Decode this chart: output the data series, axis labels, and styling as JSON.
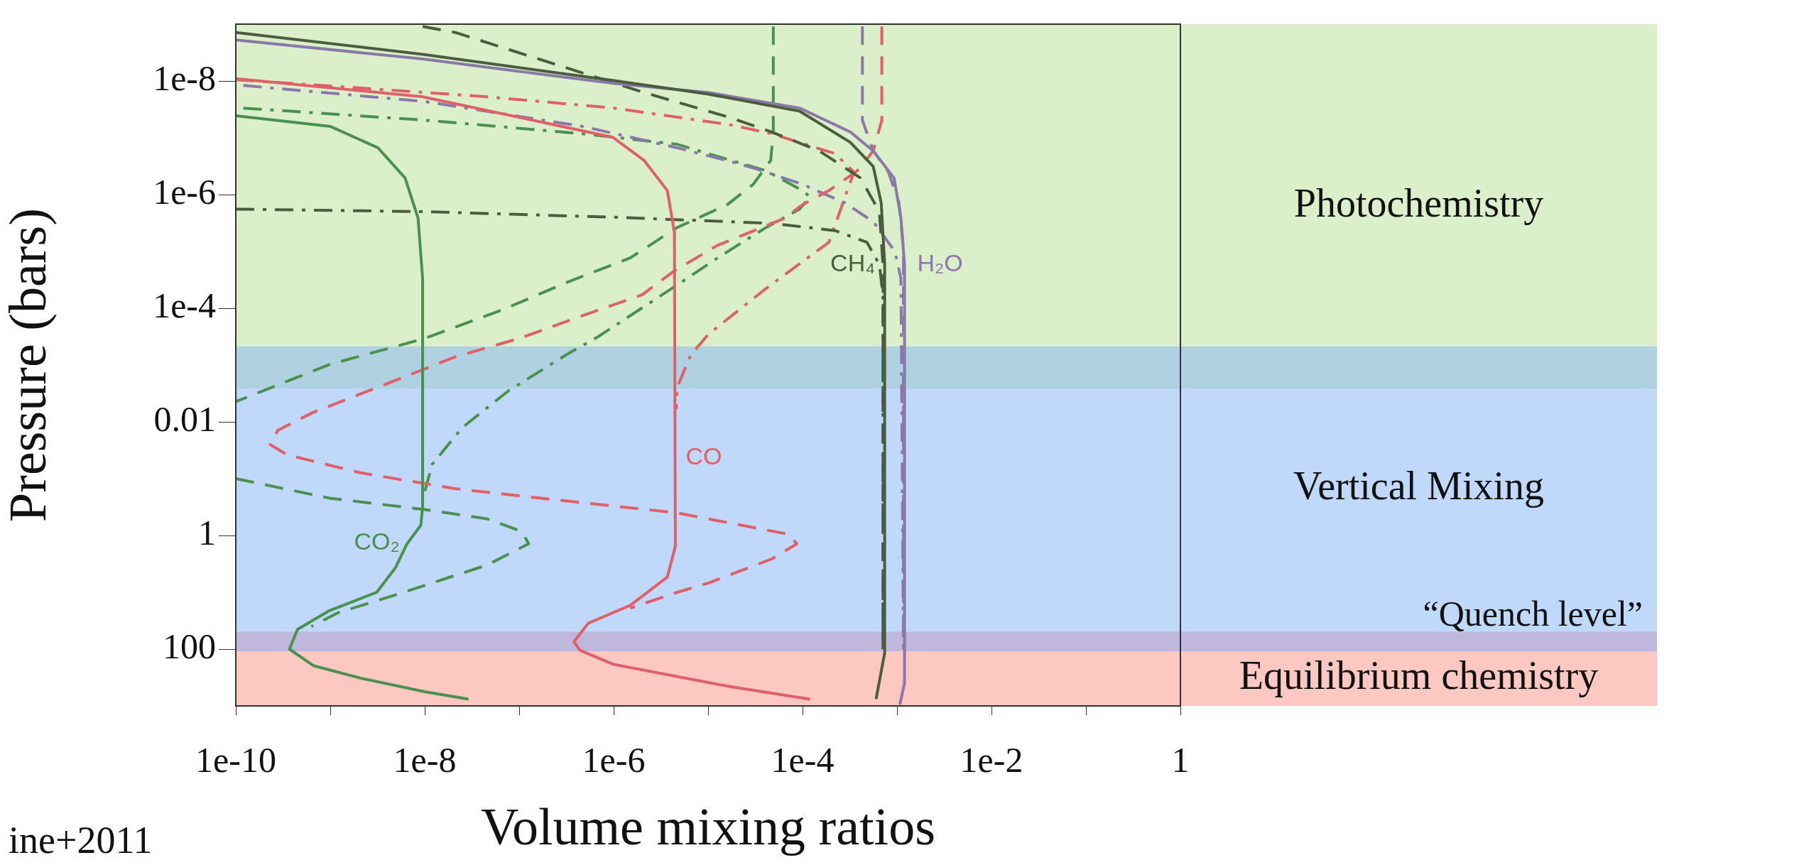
{
  "chart_data": {
    "type": "line",
    "xlabel": "Volume mixing ratios",
    "ylabel": "Pressure (bars)",
    "log": "xy",
    "xlim": [
      1e-10,
      1
    ],
    "xticks": [
      {
        "value": 1e-10,
        "label": "1e-10"
      },
      {
        "value": 1e-09,
        "label": null
      },
      {
        "value": 1e-08,
        "label": "1e-8"
      },
      {
        "value": 1e-07,
        "label": null
      },
      {
        "value": 1e-06,
        "label": "1e-6"
      },
      {
        "value": 1e-05,
        "label": null
      },
      {
        "value": 0.0001,
        "label": "1e-4"
      },
      {
        "value": 0.001,
        "label": null
      },
      {
        "value": 0.01,
        "label": "1e-2"
      },
      {
        "value": 0.1,
        "label": null
      },
      1
    ],
    "ylim": [
      1000,
      1e-09
    ],
    "yticks": [
      {
        "value": 1e-08,
        "label": "1e-8"
      },
      {
        "value": 1e-06,
        "label": "1e-6"
      },
      {
        "value": 0.0001,
        "label": "1e-4"
      },
      0.01,
      1,
      100
    ],
    "bands": [
      {
        "axis": "y",
        "from": 1e-09,
        "to": 0.0026,
        "label": "Photochemistry",
        "color": "#bfe1a0"
      },
      {
        "axis": "y",
        "from": 0.00047,
        "to": 49,
        "label": "Vertical Mixing",
        "color": "#8cb8f5"
      },
      {
        "axis": "y",
        "from": 49,
        "to": 110,
        "label": "“Quench level”",
        "color": "#8c7dbf"
      },
      {
        "axis": "y",
        "from": 110,
        "to": 1000,
        "label": "Equilibrium chemistry",
        "color": "#fd9b90"
      }
    ],
    "annotations": [
      "ine+2011"
    ],
    "series": [
      {
        "name": "CH₄",
        "color": "#4b5d3e",
        "line_style": "solid",
        "x": [
          1e-10,
          9.5e-09,
          9.8e-07,
          1e-05,
          9.3e-05,
          0.00032,
          0.00056,
          0.00068,
          0.00074,
          0.00074,
          0.0006
        ],
        "values": [
          1.4e-09,
          3.4e-09,
          9.8e-09,
          1.7e-08,
          3.4e-08,
          1.2e-07,
          3.2e-07,
          1.4e-06,
          1.7e-05,
          117,
          760
        ]
      },
      {
        "name": "H₂O",
        "color": "#8a78a8",
        "line_style": "solid",
        "x": [
          1e-10,
          9.5e-09,
          9.8e-07,
          1e-05,
          9.3e-05,
          0.00032,
          0.00056,
          0.00093,
          0.0011,
          0.0012,
          0.0012,
          0.00107
        ],
        "values": [
          1.9e-09,
          4.1e-09,
          1.1e-08,
          1.6e-08,
          3e-08,
          7.9e-08,
          1.7e-07,
          5.1e-07,
          2.6e-06,
          1.7e-05,
          400,
          950
        ]
      },
      {
        "name": "CO",
        "color": "#e06068",
        "line_style": "solid",
        "x": [
          1e-10,
          9.5e-09,
          9.8e-07,
          2.1e-06,
          3.7e-06,
          4.4e-06,
          4.5e-06,
          3.7e-06,
          1.5e-06,
          5.4e-07,
          3.8e-07,
          4.4e-07,
          1e-06,
          1.7e-05,
          0.00012
        ],
        "values": [
          9.1e-09,
          1.9e-08,
          9.8e-08,
          2.5e-07,
          8.5e-07,
          4.7e-06,
          1.55,
          5.4,
          17,
          35,
          74,
          105,
          186,
          457,
          760
        ]
      },
      {
        "name": "CO₂",
        "color": "#4a9050",
        "line_style": "solid",
        "x": [
          1e-10,
          1e-09,
          3.2e-09,
          6.2e-09,
          8.5e-09,
          9.5e-09,
          9.5e-09,
          9.1e-09,
          6.5e-09,
          4.9e-09,
          3.1e-09,
          9.8e-10,
          4.5e-10,
          3.7e-10,
          6.6e-10,
          2.1e-09,
          1e-08,
          2.9e-08
        ],
        "values": [
          4.1e-08,
          6.3e-08,
          1.5e-07,
          5.1e-07,
          2.6e-06,
          3e-05,
          0.31,
          0.66,
          1.4,
          3.7,
          10,
          21,
          45,
          100,
          195,
          324,
          562,
          760
        ]
      },
      {
        "color": "#4b5d3e",
        "line_style": "dashed",
        "x": [
          9.5e-09,
          2.1e-08,
          3.2e-07,
          2.1e-06,
          1.7e-05,
          4.7e-05,
          0.00015,
          0.00041,
          0.00065,
          0.00071,
          0.00071
        ],
        "values": [
          1.1e-09,
          1.4e-09,
          5.9e-09,
          1.6e-08,
          4.4e-08,
          7.9e-08,
          1.7e-07,
          5.1e-07,
          2e-06,
          1.7e-05,
          100
        ]
      },
      {
        "color": "#8a78a8",
        "line_style": "dashed",
        "x": [
          0.00043,
          0.00043,
          0.00056,
          0.00081,
          0.00105,
          0.00117,
          0.00117
        ],
        "values": [
          1.1e-09,
          4.9e-08,
          1.7e-07,
          4e-07,
          1.4e-06,
          8.9e-06,
          100
        ]
      },
      {
        "color": "#e06068",
        "line_style": "dashed",
        "x": [
          0.00069,
          0.00069,
          0.00056,
          0.00038,
          0.00019,
          0.0001,
          6.5e-05,
          1.26e-05,
          4.4e-06,
          2e-06,
          4.7e-07,
          1e-07,
          2.1e-08,
          3.1e-09,
          6.6e-10,
          2.8e-10,
          2.3e-10,
          3.5e-10,
          2.1e-09,
          2.1e-08,
          2.1e-07,
          4.7e-06,
          1e-05,
          7.1e-05,
          8.7e-05,
          4.7e-05,
          1e-05,
          4.7e-06,
          1.5e-06
        ],
        "values": [
          1.1e-09,
          4.9e-08,
          1.7e-07,
          3.8e-07,
          8.5e-07,
          1.5e-06,
          2.6e-06,
          7.8e-06,
          2.2e-05,
          5.8e-05,
          0.000135,
          0.00034,
          0.00072,
          0.0025,
          0.0068,
          0.014,
          0.025,
          0.038,
          0.079,
          0.15,
          0.23,
          0.4,
          0.51,
          0.95,
          1.4,
          2.6,
          6.9,
          10,
          19
        ]
      },
      {
        "color": "#4a9050",
        "line_style": "dashed",
        "x": [
          4.9e-05,
          4.9e-05,
          4.6e-05,
          3e-05,
          1.6e-05,
          4.7e-06,
          1.5e-06,
          3.2e-07,
          6.8e-08,
          1e-08,
          9.8e-10,
          1e-10,
          null,
          1e-10,
          9.8e-10,
          1e-08,
          4.6e-08,
          1.07e-07,
          1.26e-07,
          4.6e-08,
          4.6e-09,
          1.2e-09,
          6.3e-10
        ],
        "values": [
          1.1e-09,
          7.9e-08,
          2.5e-07,
          6.6e-07,
          1.5e-06,
          3.8e-06,
          1.3e-05,
          3.5e-05,
          0.000105,
          0.00034,
          0.00098,
          0.0044,
          null,
          0.1,
          0.22,
          0.35,
          0.51,
          0.85,
          1.4,
          3.3,
          11.5,
          23,
          40
        ]
      },
      {
        "color": "#4b5d3e",
        "line_style": "dashdot",
        "x": [
          1e-10,
          1e-08,
          1e-06,
          1.7e-05,
          4.7e-05,
          0.00022,
          0.00048,
          0.00065,
          0.00071,
          0.00071
        ],
        "values": [
          1.8e-06,
          2e-06,
          2.5e-06,
          3e-06,
          3.2e-06,
          4.3e-06,
          6.9e-06,
          1.7e-05,
          5.8e-05,
          100
        ]
      },
      {
        "color": "#8a78a8",
        "line_style": "dashdot",
        "x": [
          1.2e-10,
          1e-08,
          4.7e-07,
          4.7e-06,
          1.7e-05,
          3.2e-05,
          0.0001,
          0.00028,
          0.00056,
          0.00095,
          0.0011,
          0.00117
        ],
        "values": [
          1.2e-08,
          2.3e-08,
          6.3e-08,
          1.5e-07,
          2.6e-07,
          3.5e-07,
          6.6e-07,
          1.4e-06,
          3e-06,
          1e-05,
          3e-05,
          100
        ]
      },
      {
        "color": "#e06068",
        "line_style": "dashdot",
        "x": [
          1e-10,
          1.7e-09,
          4.6e-08,
          1e-06,
          1.7e-05,
          4.7e-05,
          0.00022,
          0.00035,
          0.00019,
          4.1e-05,
          1e-05,
          6.5e-06,
          4.7e-06,
          4.6e-06
        ],
        "values": [
          9.5e-09,
          1.3e-08,
          1.9e-08,
          3e-08,
          5.9e-08,
          8.5e-08,
          1.9e-07,
          4e-07,
          6.9e-06,
          4.5e-05,
          0.00029,
          0.00068,
          0.0025,
          0.0059
        ]
      },
      {
        "color": "#4a9050",
        "line_style": "dashdot",
        "x": [
          1.2e-10,
          1e-08,
          4.7e-07,
          4.7e-06,
          1e-05,
          4.1e-05,
          0.0001,
          0.00012,
          9.3e-05,
          4.1e-05,
          1.26e-05,
          4.7e-06,
          6.8e-07,
          3.2e-07,
          7.8e-08,
          2.5e-08,
          1.2e-08,
          1e-08
        ],
        "values": [
          3e-08,
          4.9e-08,
          8.5e-08,
          1.3e-07,
          1.9e-07,
          3.8e-07,
          8.5e-07,
          1.1e-06,
          1.8e-06,
          3.8e-06,
          1.3e-05,
          3.9e-05,
          0.00032,
          0.00065,
          0.0028,
          0.0126,
          0.056,
          0.17
        ]
      }
    ]
  }
}
